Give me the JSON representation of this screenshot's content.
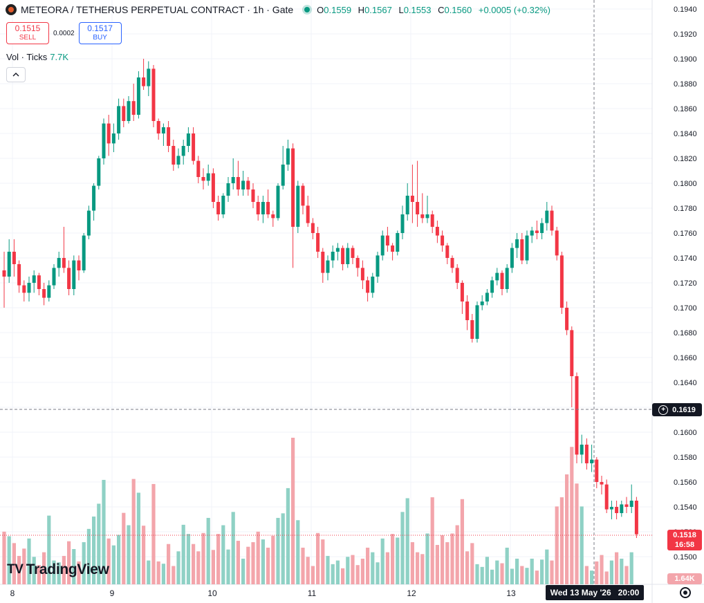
{
  "header": {
    "title": "METEORA / TETHERUS PERPETUAL CONTRACT · 1h · Gate",
    "ohlc": [
      {
        "k": "O",
        "v": "0.1559"
      },
      {
        "k": "H",
        "v": "0.1567"
      },
      {
        "k": "L",
        "v": "0.1553"
      },
      {
        "k": "C",
        "v": "0.1560"
      }
    ],
    "change": "+0.0005 (+0.32%)"
  },
  "trade": {
    "sell_price": "0.1515",
    "sell_label": "SELL",
    "spread": "0.0002",
    "buy_price": "0.1517",
    "buy_label": "BUY"
  },
  "volume": {
    "label": "Vol · Ticks",
    "value": "7.7K"
  },
  "collapse_icon": "chevron-up-icon",
  "brand": {
    "mark": "TV",
    "name": "TradingView"
  },
  "price_axis": {
    "ticks": [
      "0.1940",
      "0.1920",
      "0.1900",
      "0.1880",
      "0.1860",
      "0.1840",
      "0.1820",
      "0.1800",
      "0.1780",
      "0.1760",
      "0.1740",
      "0.1720",
      "0.1700",
      "0.1680",
      "0.1660",
      "0.1640",
      "0.1620",
      "0.1600",
      "0.1580",
      "0.1560",
      "0.1540",
      "0.1520",
      "0.1500"
    ],
    "crosshair_price": "0.1619",
    "last_price": "0.1518",
    "countdown": "16:58",
    "volume_tag": "1.64K"
  },
  "time_axis": {
    "labels": [
      "8",
      "9",
      "10",
      "11",
      "12",
      "13"
    ],
    "crosshair_time": "Wed 13 May '26   20:00"
  },
  "colors": {
    "up": "#089981",
    "down": "#f23645",
    "vol_up": "#8fd1c5",
    "vol_down": "#f3a5ab",
    "grid": "#f0f3fa",
    "text": "#131722"
  },
  "chart_data": {
    "type": "candlestick",
    "interval": "1h",
    "ylim": [
      0.149,
      0.195
    ],
    "x_day_labels": [
      "8",
      "9",
      "10",
      "11",
      "12",
      "13"
    ],
    "candles": [
      [
        0.173,
        0.1745,
        0.17,
        0.1725
      ],
      [
        0.1725,
        0.1755,
        0.172,
        0.1745
      ],
      [
        0.1745,
        0.1755,
        0.1725,
        0.1735
      ],
      [
        0.1735,
        0.1738,
        0.1712,
        0.1718
      ],
      [
        0.1718,
        0.1722,
        0.1705,
        0.1712
      ],
      [
        0.1712,
        0.1725,
        0.1705,
        0.172
      ],
      [
        0.172,
        0.173,
        0.1712,
        0.1726
      ],
      [
        0.1726,
        0.1728,
        0.171,
        0.1715
      ],
      [
        0.1715,
        0.172,
        0.1702,
        0.1708
      ],
      [
        0.1708,
        0.1722,
        0.1705,
        0.1718
      ],
      [
        0.1718,
        0.1735,
        0.1715,
        0.1732
      ],
      [
        0.1732,
        0.1745,
        0.1725,
        0.174
      ],
      [
        0.174,
        0.1765,
        0.1728,
        0.1732
      ],
      [
        0.1732,
        0.1738,
        0.171,
        0.1715
      ],
      [
        0.1715,
        0.1742,
        0.171,
        0.1738
      ],
      [
        0.1738,
        0.1742,
        0.1722,
        0.173
      ],
      [
        0.173,
        0.176,
        0.1728,
        0.1758
      ],
      [
        0.1758,
        0.1782,
        0.1755,
        0.1778
      ],
      [
        0.1778,
        0.18,
        0.177,
        0.1798
      ],
      [
        0.1798,
        0.1822,
        0.1795,
        0.182
      ],
      [
        0.182,
        0.1852,
        0.1815,
        0.1848
      ],
      [
        0.1848,
        0.1855,
        0.1822,
        0.1832
      ],
      [
        0.1832,
        0.1848,
        0.1825,
        0.184
      ],
      [
        0.184,
        0.1868,
        0.1835,
        0.1862
      ],
      [
        0.1862,
        0.1868,
        0.1845,
        0.185
      ],
      [
        0.185,
        0.187,
        0.1848,
        0.1866
      ],
      [
        0.1866,
        0.188,
        0.185,
        0.1855
      ],
      [
        0.1855,
        0.189,
        0.1852,
        0.1885
      ],
      [
        0.1885,
        0.19,
        0.1875,
        0.1878
      ],
      [
        0.1878,
        0.1898,
        0.187,
        0.1892
      ],
      [
        0.1892,
        0.1895,
        0.1845,
        0.185
      ],
      [
        0.185,
        0.1852,
        0.1835,
        0.184
      ],
      [
        0.184,
        0.1848,
        0.183,
        0.1845
      ],
      [
        0.1845,
        0.185,
        0.1825,
        0.183
      ],
      [
        0.183,
        0.1835,
        0.181,
        0.1815
      ],
      [
        0.1815,
        0.1828,
        0.1812,
        0.1822
      ],
      [
        0.1822,
        0.1835,
        0.1815,
        0.183
      ],
      [
        0.183,
        0.1845,
        0.1825,
        0.184
      ],
      [
        0.184,
        0.1845,
        0.1815,
        0.1818
      ],
      [
        0.1818,
        0.1822,
        0.18,
        0.1805
      ],
      [
        0.1805,
        0.1812,
        0.1795,
        0.1802
      ],
      [
        0.1802,
        0.1815,
        0.1798,
        0.1808
      ],
      [
        0.1808,
        0.1812,
        0.178,
        0.1785
      ],
      [
        0.1785,
        0.179,
        0.177,
        0.1775
      ],
      [
        0.1775,
        0.1792,
        0.1772,
        0.179
      ],
      [
        0.179,
        0.1805,
        0.1785,
        0.18
      ],
      [
        0.18,
        0.182,
        0.1795,
        0.1805
      ],
      [
        0.1805,
        0.1818,
        0.179,
        0.1795
      ],
      [
        0.1795,
        0.181,
        0.179,
        0.1802
      ],
      [
        0.1802,
        0.1805,
        0.179,
        0.1795
      ],
      [
        0.1795,
        0.18,
        0.178,
        0.1785
      ],
      [
        0.1785,
        0.179,
        0.177,
        0.1775
      ],
      [
        0.1775,
        0.179,
        0.1768,
        0.1785
      ],
      [
        0.1785,
        0.1795,
        0.1772,
        0.1775
      ],
      [
        0.1775,
        0.1778,
        0.1765,
        0.1772
      ],
      [
        0.1772,
        0.18,
        0.177,
        0.1798
      ],
      [
        0.1798,
        0.183,
        0.1795,
        0.1815
      ],
      [
        0.1815,
        0.1835,
        0.181,
        0.1828
      ],
      [
        0.1828,
        0.1832,
        0.1732,
        0.1765
      ],
      [
        0.1765,
        0.1802,
        0.176,
        0.1798
      ],
      [
        0.1798,
        0.18,
        0.1775,
        0.1782
      ],
      [
        0.1782,
        0.179,
        0.1765,
        0.1768
      ],
      [
        0.1768,
        0.1772,
        0.1755,
        0.176
      ],
      [
        0.176,
        0.1765,
        0.174,
        0.1745
      ],
      [
        0.1745,
        0.1748,
        0.172,
        0.1728
      ],
      [
        0.1728,
        0.1742,
        0.1722,
        0.1738
      ],
      [
        0.1738,
        0.175,
        0.1732,
        0.1745
      ],
      [
        0.1745,
        0.1752,
        0.1738,
        0.1748
      ],
      [
        0.1748,
        0.175,
        0.173,
        0.1735
      ],
      [
        0.1735,
        0.1752,
        0.1732,
        0.1748
      ],
      [
        0.1748,
        0.175,
        0.1735,
        0.174
      ],
      [
        0.174,
        0.1742,
        0.1725,
        0.1732
      ],
      [
        0.1732,
        0.1738,
        0.1715,
        0.1722
      ],
      [
        0.1722,
        0.1725,
        0.1705,
        0.1712
      ],
      [
        0.1712,
        0.1728,
        0.1708,
        0.1725
      ],
      [
        0.1725,
        0.1745,
        0.172,
        0.1742
      ],
      [
        0.1742,
        0.1762,
        0.1738,
        0.1758
      ],
      [
        0.1758,
        0.1765,
        0.1745,
        0.175
      ],
      [
        0.175,
        0.1752,
        0.1738,
        0.1745
      ],
      [
        0.1745,
        0.1762,
        0.1742,
        0.176
      ],
      [
        0.176,
        0.1782,
        0.1755,
        0.1775
      ],
      [
        0.1775,
        0.18,
        0.177,
        0.179
      ],
      [
        0.179,
        0.1815,
        0.1768,
        0.1785
      ],
      [
        0.1785,
        0.1818,
        0.1765,
        0.1775
      ],
      [
        0.1775,
        0.1792,
        0.1768,
        0.1772
      ],
      [
        0.1772,
        0.179,
        0.1768,
        0.1775
      ],
      [
        0.1775,
        0.1778,
        0.176,
        0.1765
      ],
      [
        0.1765,
        0.177,
        0.1752,
        0.1758
      ],
      [
        0.1758,
        0.1762,
        0.1745,
        0.175
      ],
      [
        0.175,
        0.1752,
        0.1735,
        0.174
      ],
      [
        0.174,
        0.1742,
        0.1728,
        0.1732
      ],
      [
        0.1732,
        0.1735,
        0.1715,
        0.172
      ],
      [
        0.172,
        0.1722,
        0.1695,
        0.1705
      ],
      [
        0.1705,
        0.171,
        0.1682,
        0.169
      ],
      [
        0.169,
        0.1695,
        0.1672,
        0.1675
      ],
      [
        0.1675,
        0.1705,
        0.1672,
        0.1702
      ],
      [
        0.1702,
        0.171,
        0.1698,
        0.1705
      ],
      [
        0.1705,
        0.1715,
        0.1702,
        0.1712
      ],
      [
        0.1712,
        0.1725,
        0.1708,
        0.1722
      ],
      [
        0.1722,
        0.1732,
        0.1718,
        0.1728
      ],
      [
        0.1728,
        0.173,
        0.171,
        0.1715
      ],
      [
        0.1715,
        0.1735,
        0.1712,
        0.1732
      ],
      [
        0.1732,
        0.1752,
        0.1728,
        0.1748
      ],
      [
        0.1748,
        0.176,
        0.174,
        0.1755
      ],
      [
        0.1755,
        0.176,
        0.1735,
        0.1738
      ],
      [
        0.1738,
        0.1762,
        0.1735,
        0.1758
      ],
      [
        0.1758,
        0.1765,
        0.1752,
        0.1762
      ],
      [
        0.1762,
        0.177,
        0.1755,
        0.176
      ],
      [
        0.176,
        0.1772,
        0.1755,
        0.1768
      ],
      [
        0.1768,
        0.1785,
        0.1762,
        0.1778
      ],
      [
        0.1778,
        0.1782,
        0.1758,
        0.1762
      ],
      [
        0.1762,
        0.1765,
        0.1738,
        0.1742
      ],
      [
        0.1742,
        0.1745,
        0.1695,
        0.17
      ],
      [
        0.17,
        0.1705,
        0.1678,
        0.1682
      ],
      [
        0.1682,
        0.1685,
        0.162,
        0.1645
      ],
      [
        0.1645,
        0.1648,
        0.1575,
        0.1582
      ],
      [
        0.1582,
        0.1598,
        0.1575,
        0.159
      ],
      [
        0.159,
        0.1595,
        0.157,
        0.1575
      ],
      [
        0.1575,
        0.159,
        0.1568,
        0.1578
      ],
      [
        0.1578,
        0.158,
        0.1555,
        0.156
      ],
      [
        0.156,
        0.1565,
        0.155,
        0.1558
      ],
      [
        0.1558,
        0.1562,
        0.1535,
        0.1538
      ],
      [
        0.1538,
        0.1545,
        0.153,
        0.154
      ],
      [
        0.154,
        0.1545,
        0.153,
        0.1535
      ],
      [
        0.1535,
        0.1545,
        0.1532,
        0.1542
      ],
      [
        0.1542,
        0.1548,
        0.1535,
        0.154
      ],
      [
        0.154,
        0.1558,
        0.1535,
        0.1545
      ],
      [
        0.1545,
        0.1548,
        0.1515,
        0.1518
      ]
    ],
    "volumes": [
      1150,
      1050,
      900,
      620,
      780,
      1000,
      600,
      420,
      700,
      1500,
      520,
      480,
      620,
      940,
      770,
      500,
      920,
      1210,
      1480,
      1760,
      2280,
      1000,
      850,
      1080,
      1560,
      1290,
      2300,
      2000,
      1280,
      520,
      2190,
      500,
      450,
      880,
      400,
      720,
      1300,
      1100,
      880,
      720,
      1120,
      1450,
      750,
      1100,
      1290,
      760,
      1580,
      950,
      560,
      820,
      920,
      1150,
      980,
      800,
      1060,
      1450,
      1550,
      2100,
      3200,
      1400,
      800,
      600,
      400,
      1120,
      980,
      620,
      440,
      520,
      350,
      600,
      640,
      420,
      560,
      800,
      700,
      480,
      1000,
      700,
      1100,
      1020,
      1580,
      1880,
      920,
      700,
      660,
      1110,
      1900,
      860,
      1070,
      920,
      1110,
      1290,
      1860,
      720,
      900,
      440,
      380,
      600,
      320,
      520,
      460,
      800,
      340,
      560,
      400,
      360,
      560,
      300,
      540,
      760,
      520,
      1700,
      1900,
      2400,
      3000,
      2200,
      1700,
      400,
      300,
      500,
      640,
      280,
      520,
      700,
      560,
      400,
      700
    ]
  }
}
